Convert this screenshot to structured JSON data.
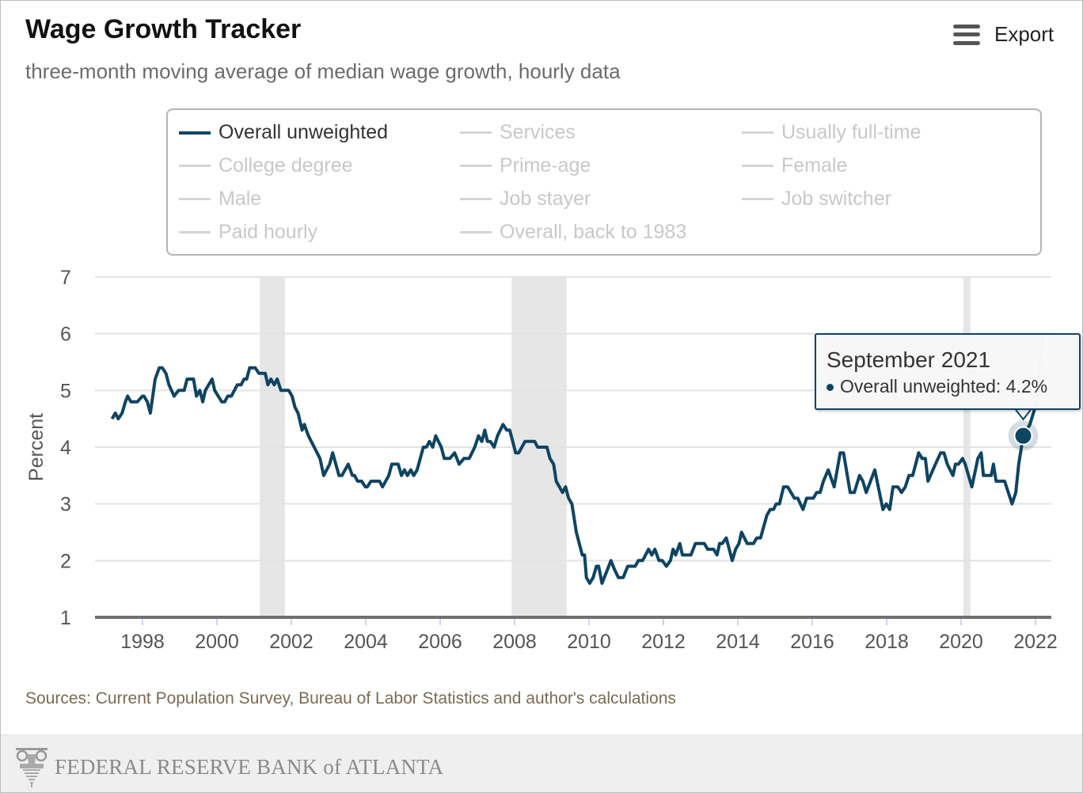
{
  "header": {
    "title": "Wage Growth Tracker",
    "subtitle": "three-month moving average of median wage growth, hourly data",
    "export_label": "Export",
    "export_icon": "hamburger-menu-icon"
  },
  "legend": {
    "items": [
      {
        "label": "Overall unweighted",
        "active": true
      },
      {
        "label": "Services",
        "active": false
      },
      {
        "label": "Usually full-time",
        "active": false
      },
      {
        "label": "College degree",
        "active": false
      },
      {
        "label": "Prime-age",
        "active": false
      },
      {
        "label": "Female",
        "active": false
      },
      {
        "label": "Male",
        "active": false
      },
      {
        "label": "Job stayer",
        "active": false
      },
      {
        "label": "Job switcher",
        "active": false
      },
      {
        "label": "Paid hourly",
        "active": false
      },
      {
        "label": "Overall, back to 1983",
        "active": false
      }
    ]
  },
  "tooltip": {
    "date": "September 2021",
    "series": "Overall unweighted",
    "value_text": "4.2%",
    "line": "Overall unweighted: 4.2%"
  },
  "sources": "Sources: Current Population Survey, Bureau of Labor Statistics and author's calculations",
  "footer": {
    "logo_text": "FEDERAL RESERVE BANK of ATLANTA"
  },
  "colors": {
    "line": "#0e4462",
    "recession": "#e6e6e6",
    "grid": "#e3e3e3",
    "axis": "#707070",
    "sources": "#7a6a55"
  },
  "chart_data": {
    "type": "line",
    "title": "Wage Growth Tracker",
    "xlabel": "",
    "ylabel": "Percent",
    "xlim": [
      1996.2,
      2022.4
    ],
    "ylim": [
      1,
      7
    ],
    "yticks": [
      1,
      2,
      3,
      4,
      5,
      6,
      7
    ],
    "xticks": [
      1998,
      2000,
      2002,
      2004,
      2006,
      2008,
      2010,
      2012,
      2014,
      2016,
      2018,
      2020,
      2022
    ],
    "grid": true,
    "recessions": [
      [
        2001.15,
        2001.83
      ],
      [
        2007.92,
        2009.4
      ],
      [
        2020.06,
        2020.25
      ]
    ],
    "highlight": {
      "x": 2021.67,
      "y": 4.2,
      "label": "September 2021"
    },
    "series": [
      {
        "name": "Overall unweighted",
        "points": [
          [
            1997.18,
            4.5
          ],
          [
            1997.27,
            4.6
          ],
          [
            1997.35,
            4.5
          ],
          [
            1997.45,
            4.6
          ],
          [
            1997.54,
            4.8
          ],
          [
            1997.6,
            4.9
          ],
          [
            1997.69,
            4.8
          ],
          [
            1997.86,
            4.8
          ],
          [
            1998.0,
            4.9
          ],
          [
            1998.04,
            4.9
          ],
          [
            1998.13,
            4.8
          ],
          [
            1998.21,
            4.6
          ],
          [
            1998.34,
            5.2
          ],
          [
            1998.45,
            5.4
          ],
          [
            1998.53,
            5.4
          ],
          [
            1998.63,
            5.3
          ],
          [
            1998.71,
            5.1
          ],
          [
            1998.85,
            4.9
          ],
          [
            1998.97,
            5.0
          ],
          [
            1999.12,
            5.0
          ],
          [
            1999.2,
            5.2
          ],
          [
            1999.37,
            5.2
          ],
          [
            1999.45,
            4.9
          ],
          [
            1999.54,
            5.0
          ],
          [
            1999.62,
            4.8
          ],
          [
            1999.69,
            5.0
          ],
          [
            1999.87,
            5.2
          ],
          [
            1999.94,
            5.0
          ],
          [
            2000.13,
            4.8
          ],
          [
            2000.21,
            4.8
          ],
          [
            2000.29,
            4.9
          ],
          [
            2000.39,
            4.9
          ],
          [
            2000.55,
            5.1
          ],
          [
            2000.65,
            5.1
          ],
          [
            2000.73,
            5.2
          ],
          [
            2000.8,
            5.2
          ],
          [
            2000.88,
            5.4
          ],
          [
            2001.03,
            5.4
          ],
          [
            2001.13,
            5.3
          ],
          [
            2001.3,
            5.3
          ],
          [
            2001.37,
            5.1
          ],
          [
            2001.45,
            5.2
          ],
          [
            2001.54,
            5.1
          ],
          [
            2001.62,
            5.2
          ],
          [
            2001.72,
            5.0
          ],
          [
            2001.93,
            5.0
          ],
          [
            2002.02,
            4.9
          ],
          [
            2002.1,
            4.7
          ],
          [
            2002.18,
            4.6
          ],
          [
            2002.29,
            4.3
          ],
          [
            2002.35,
            4.4
          ],
          [
            2002.46,
            4.2
          ],
          [
            2002.77,
            3.8
          ],
          [
            2002.87,
            3.5
          ],
          [
            2003.03,
            3.7
          ],
          [
            2003.11,
            3.9
          ],
          [
            2003.28,
            3.5
          ],
          [
            2003.36,
            3.5
          ],
          [
            2003.53,
            3.7
          ],
          [
            2003.64,
            3.5
          ],
          [
            2003.7,
            3.5
          ],
          [
            2003.78,
            3.4
          ],
          [
            2003.89,
            3.4
          ],
          [
            2003.99,
            3.3
          ],
          [
            2004.04,
            3.3
          ],
          [
            2004.14,
            3.4
          ],
          [
            2004.37,
            3.4
          ],
          [
            2004.45,
            3.3
          ],
          [
            2004.62,
            3.5
          ],
          [
            2004.7,
            3.7
          ],
          [
            2004.87,
            3.7
          ],
          [
            2004.96,
            3.5
          ],
          [
            2005.04,
            3.6
          ],
          [
            2005.12,
            3.5
          ],
          [
            2005.21,
            3.6
          ],
          [
            2005.29,
            3.5
          ],
          [
            2005.38,
            3.6
          ],
          [
            2005.55,
            4.0
          ],
          [
            2005.63,
            4.0
          ],
          [
            2005.71,
            4.1
          ],
          [
            2005.8,
            4.0
          ],
          [
            2005.88,
            4.2
          ],
          [
            2006.03,
            4.0
          ],
          [
            2006.11,
            3.8
          ],
          [
            2006.26,
            3.8
          ],
          [
            2006.39,
            3.9
          ],
          [
            2006.51,
            3.7
          ],
          [
            2006.64,
            3.8
          ],
          [
            2006.78,
            3.8
          ],
          [
            2006.93,
            4.0
          ],
          [
            2007.03,
            4.2
          ],
          [
            2007.12,
            4.1
          ],
          [
            2007.2,
            4.3
          ],
          [
            2007.27,
            4.1
          ],
          [
            2007.35,
            4.1
          ],
          [
            2007.45,
            4.0
          ],
          [
            2007.54,
            4.2
          ],
          [
            2007.69,
            4.4
          ],
          [
            2007.79,
            4.3
          ],
          [
            2007.87,
            4.3
          ],
          [
            2008.03,
            3.9
          ],
          [
            2008.11,
            3.9
          ],
          [
            2008.28,
            4.1
          ],
          [
            2008.54,
            4.1
          ],
          [
            2008.62,
            4.0
          ],
          [
            2008.87,
            4.0
          ],
          [
            2008.95,
            3.8
          ],
          [
            2009.05,
            3.7
          ],
          [
            2009.12,
            3.4
          ],
          [
            2009.29,
            3.2
          ],
          [
            2009.37,
            3.3
          ],
          [
            2009.45,
            3.1
          ],
          [
            2009.54,
            3.0
          ],
          [
            2009.66,
            2.5
          ],
          [
            2009.82,
            2.1
          ],
          [
            2009.88,
            2.1
          ],
          [
            2009.93,
            1.7
          ],
          [
            2010.02,
            1.6
          ],
          [
            2010.11,
            1.7
          ],
          [
            2010.2,
            1.9
          ],
          [
            2010.26,
            1.9
          ],
          [
            2010.35,
            1.6
          ],
          [
            2010.47,
            1.8
          ],
          [
            2010.59,
            2.0
          ],
          [
            2010.68,
            1.85
          ],
          [
            2010.79,
            1.7
          ],
          [
            2010.92,
            1.7
          ],
          [
            2011.04,
            1.9
          ],
          [
            2011.24,
            1.9
          ],
          [
            2011.33,
            2.0
          ],
          [
            2011.44,
            2.0
          ],
          [
            2011.6,
            2.2
          ],
          [
            2011.69,
            2.1
          ],
          [
            2011.77,
            2.2
          ],
          [
            2011.88,
            2.0
          ],
          [
            2011.97,
            2.0
          ],
          [
            2012.08,
            1.9
          ],
          [
            2012.19,
            2.0
          ],
          [
            2012.26,
            2.2
          ],
          [
            2012.33,
            2.1
          ],
          [
            2012.44,
            2.3
          ],
          [
            2012.51,
            2.1
          ],
          [
            2012.74,
            2.1
          ],
          [
            2012.86,
            2.3
          ],
          [
            2013.1,
            2.3
          ],
          [
            2013.19,
            2.2
          ],
          [
            2013.35,
            2.2
          ],
          [
            2013.44,
            2.1
          ],
          [
            2013.51,
            2.3
          ],
          [
            2013.58,
            2.3
          ],
          [
            2013.69,
            2.4
          ],
          [
            2013.85,
            2.0
          ],
          [
            2013.94,
            2.2
          ],
          [
            2014.03,
            2.3
          ],
          [
            2014.1,
            2.5
          ],
          [
            2014.25,
            2.3
          ],
          [
            2014.42,
            2.3
          ],
          [
            2014.51,
            2.4
          ],
          [
            2014.61,
            2.4
          ],
          [
            2014.78,
            2.8
          ],
          [
            2014.87,
            2.9
          ],
          [
            2014.96,
            2.9
          ],
          [
            2015.03,
            3.0
          ],
          [
            2015.12,
            3.0
          ],
          [
            2015.23,
            3.3
          ],
          [
            2015.34,
            3.3
          ],
          [
            2015.52,
            3.1
          ],
          [
            2015.61,
            3.1
          ],
          [
            2015.75,
            2.9
          ],
          [
            2015.85,
            3.1
          ],
          [
            2016.03,
            3.1
          ],
          [
            2016.12,
            3.2
          ],
          [
            2016.21,
            3.2
          ],
          [
            2016.3,
            3.4
          ],
          [
            2016.43,
            3.6
          ],
          [
            2016.59,
            3.3
          ],
          [
            2016.75,
            3.9
          ],
          [
            2016.84,
            3.9
          ],
          [
            2017.02,
            3.2
          ],
          [
            2017.13,
            3.2
          ],
          [
            2017.27,
            3.5
          ],
          [
            2017.36,
            3.4
          ],
          [
            2017.45,
            3.2
          ],
          [
            2017.68,
            3.6
          ],
          [
            2017.9,
            2.9
          ],
          [
            2017.99,
            3.0
          ],
          [
            2018.08,
            2.9
          ],
          [
            2018.17,
            3.3
          ],
          [
            2018.3,
            3.3
          ],
          [
            2018.4,
            3.2
          ],
          [
            2018.5,
            3.3
          ],
          [
            2018.6,
            3.5
          ],
          [
            2018.7,
            3.5
          ],
          [
            2018.86,
            3.9
          ],
          [
            2018.95,
            3.8
          ],
          [
            2019.04,
            3.8
          ],
          [
            2019.11,
            3.4
          ],
          [
            2019.31,
            3.7
          ],
          [
            2019.45,
            3.9
          ],
          [
            2019.54,
            3.9
          ],
          [
            2019.63,
            3.7
          ],
          [
            2019.78,
            3.5
          ],
          [
            2019.85,
            3.7
          ],
          [
            2019.93,
            3.7
          ],
          [
            2020.04,
            3.8
          ],
          [
            2020.11,
            3.7
          ],
          [
            2020.29,
            3.3
          ],
          [
            2020.45,
            3.8
          ],
          [
            2020.54,
            3.9
          ],
          [
            2020.6,
            3.5
          ],
          [
            2020.81,
            3.5
          ],
          [
            2020.87,
            3.7
          ],
          [
            2020.94,
            3.4
          ],
          [
            2021.17,
            3.4
          ],
          [
            2021.37,
            3.0
          ],
          [
            2021.47,
            3.2
          ],
          [
            2021.55,
            3.7
          ],
          [
            2021.67,
            4.2
          ],
          [
            2021.85,
            4.4
          ],
          [
            2021.99,
            4.7
          ],
          [
            2022.21,
            6.0
          ]
        ]
      }
    ]
  }
}
